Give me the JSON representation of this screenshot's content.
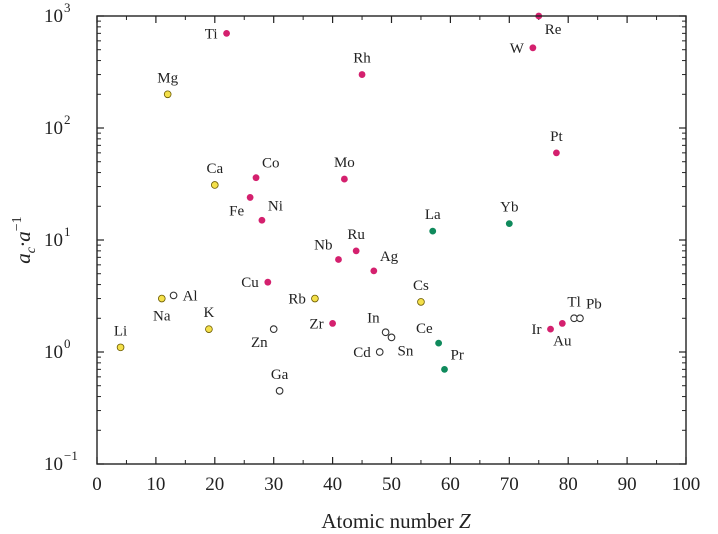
{
  "chart_data": {
    "type": "scatter",
    "title": "",
    "xlabel": "Atomic number Z",
    "xlabel_main": "Atomic number ",
    "xlabel_var": "Z",
    "ylabel": "a_c·a^-1",
    "ylabel_parts": {
      "a1": "a",
      "sub": "c",
      "dot": "·a",
      "sup": "−1"
    },
    "xlim": [
      0,
      100
    ],
    "ylim": [
      0.1,
      1000
    ],
    "yscale": "log",
    "grid": false,
    "legend": "none",
    "x_ticks": [
      "0",
      "10",
      "20",
      "30",
      "40",
      "50",
      "60",
      "70",
      "80",
      "90",
      "100"
    ],
    "y_ticks": [
      {
        "base": "10",
        "exp": "−1",
        "value": 0.1
      },
      {
        "base": "10",
        "exp": "0",
        "value": 1
      },
      {
        "base": "10",
        "exp": "1",
        "value": 10
      },
      {
        "base": "10",
        "exp": "2",
        "value": 100
      },
      {
        "base": "10",
        "exp": "3",
        "value": 1000
      }
    ],
    "colors": {
      "yellow": "#f4e04a",
      "magenta": "#d4206e",
      "green": "#0f8a5c",
      "open": "#ffffff",
      "axis": "#222222"
    },
    "points": [
      {
        "label": "Li",
        "x": 4,
        "y": 1.1,
        "group": "yellow",
        "anchor": "above"
      },
      {
        "label": "Na",
        "x": 11,
        "y": 3.0,
        "group": "yellow",
        "anchor": "below"
      },
      {
        "label": "Mg",
        "x": 12,
        "y": 200,
        "group": "yellow",
        "anchor": "above"
      },
      {
        "label": "Al",
        "x": 13,
        "y": 3.2,
        "group": "open",
        "anchor": "right"
      },
      {
        "label": "K",
        "x": 19,
        "y": 1.6,
        "group": "yellow",
        "anchor": "above"
      },
      {
        "label": "Ca",
        "x": 20,
        "y": 31,
        "group": "yellow",
        "anchor": "above"
      },
      {
        "label": "Ti",
        "x": 22,
        "y": 700,
        "group": "magenta",
        "anchor": "left"
      },
      {
        "label": "Fe",
        "x": 26,
        "y": 24,
        "group": "magenta",
        "anchor": "below-left"
      },
      {
        "label": "Co",
        "x": 27,
        "y": 36,
        "group": "magenta",
        "anchor": "above-right"
      },
      {
        "label": "Ni",
        "x": 28,
        "y": 15,
        "group": "magenta",
        "anchor": "above-right"
      },
      {
        "label": "Cu",
        "x": 29,
        "y": 4.2,
        "group": "magenta",
        "anchor": "left"
      },
      {
        "label": "Zn",
        "x": 30,
        "y": 1.6,
        "group": "open",
        "anchor": "below-left"
      },
      {
        "label": "Ga",
        "x": 31,
        "y": 0.45,
        "group": "open",
        "anchor": "above"
      },
      {
        "label": "Rb",
        "x": 37,
        "y": 3.0,
        "group": "yellow",
        "anchor": "left"
      },
      {
        "label": "Zr",
        "x": 40,
        "y": 1.8,
        "group": "magenta",
        "anchor": "left"
      },
      {
        "label": "Nb",
        "x": 41,
        "y": 6.7,
        "group": "magenta",
        "anchor": "above-left"
      },
      {
        "label": "Mo",
        "x": 42,
        "y": 35,
        "group": "magenta",
        "anchor": "above"
      },
      {
        "label": "Ru",
        "x": 44,
        "y": 8.0,
        "group": "magenta",
        "anchor": "above"
      },
      {
        "label": "Rh",
        "x": 45,
        "y": 300,
        "group": "magenta",
        "anchor": "above"
      },
      {
        "label": "Ag",
        "x": 47,
        "y": 5.3,
        "group": "magenta",
        "anchor": "above-right"
      },
      {
        "label": "Cd",
        "x": 48,
        "y": 1.0,
        "group": "open",
        "anchor": "left"
      },
      {
        "label": "In",
        "x": 49,
        "y": 1.5,
        "group": "open",
        "anchor": "above-left"
      },
      {
        "label": "Sn",
        "x": 50,
        "y": 1.35,
        "group": "open",
        "anchor": "below-right"
      },
      {
        "label": "Cs",
        "x": 55,
        "y": 2.8,
        "group": "yellow",
        "anchor": "above"
      },
      {
        "label": "La",
        "x": 57,
        "y": 12,
        "group": "green",
        "anchor": "above"
      },
      {
        "label": "Ce",
        "x": 58,
        "y": 1.2,
        "group": "green",
        "anchor": "above-left"
      },
      {
        "label": "Pr",
        "x": 59,
        "y": 0.7,
        "group": "green",
        "anchor": "above-right"
      },
      {
        "label": "Yb",
        "x": 70,
        "y": 14,
        "group": "green",
        "anchor": "above"
      },
      {
        "label": "W",
        "x": 74,
        "y": 520,
        "group": "magenta",
        "anchor": "left"
      },
      {
        "label": "Re",
        "x": 75,
        "y": 1000,
        "group": "magenta",
        "anchor": "below-right"
      },
      {
        "label": "Ir",
        "x": 77,
        "y": 1.6,
        "group": "magenta",
        "anchor": "left"
      },
      {
        "label": "Pt",
        "x": 78,
        "y": 60,
        "group": "magenta",
        "anchor": "above"
      },
      {
        "label": "Au",
        "x": 79,
        "y": 1.8,
        "group": "magenta",
        "anchor": "below"
      },
      {
        "label": "Tl",
        "x": 81,
        "y": 2.0,
        "group": "open",
        "anchor": "above"
      },
      {
        "label": "Pb",
        "x": 82,
        "y": 2.0,
        "group": "open",
        "anchor": "above-right"
      }
    ]
  }
}
